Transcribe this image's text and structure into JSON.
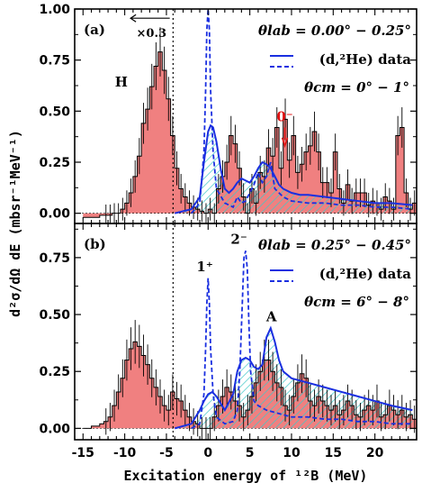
{
  "chart_data": {
    "type": "bar",
    "x_axis_label": "Excitation energy of ¹²B (MeV)",
    "y_axis_label": "d²σ/dΩ dE (mbsr⁻¹MeV⁻¹)",
    "xlim": [
      -16,
      25
    ],
    "xticks": [
      "-15",
      "-10",
      "-5",
      "0",
      "5",
      "10",
      "15",
      "20"
    ],
    "yticks_a": [
      "0.00",
      "0.25",
      "0.50",
      "0.75",
      "1.00"
    ],
    "yticks_b": [
      "0.00",
      "0.25",
      "0.50",
      "0.75"
    ],
    "divider_x": -4.2,
    "panels": [
      {
        "id": "a",
        "panel_label": "(a)",
        "ylim": [
          -0.05,
          1.0
        ],
        "theta_lab_label": "θlab = 0.00° − 0.25°",
        "theta_cm_label": "θcm = 0° − 1°",
        "legend_label": "(d,²He) data",
        "peak_labels": [
          {
            "text": "H",
            "x": -10.4,
            "y": 0.62,
            "color": "#000000"
          },
          {
            "text": "0⁻",
            "x": 9.2,
            "y": 0.45,
            "color": "#e01010"
          }
        ],
        "scale_note": "×0.3",
        "histogram": {
          "x_start": -15.0,
          "bin_width": 0.5,
          "values": [
            -0.02,
            -0.02,
            -0.02,
            -0.02,
            -0.01,
            -0.01,
            -0.01,
            0.0,
            0.0,
            0.02,
            0.05,
            0.1,
            0.18,
            0.28,
            0.44,
            0.51,
            0.62,
            0.72,
            0.79,
            0.7,
            0.56,
            0.38,
            0.22,
            0.12,
            0.08,
            0.05,
            0.03,
            0.02,
            0.01,
            0.0,
            0.02,
            0.0,
            0.12,
            0.18,
            0.25,
            0.38,
            0.34,
            0.22,
            0.08,
            0.0,
            0.12,
            0.05,
            0.2,
            0.18,
            0.32,
            0.28,
            0.42,
            0.22,
            0.46,
            0.26,
            0.38,
            0.2,
            0.24,
            0.3,
            0.33,
            0.4,
            0.3,
            0.15,
            0.15,
            0.1,
            0.3,
            0.12,
            0.05,
            0.14,
            0.06,
            0.1,
            0.1,
            0.1,
            0.04,
            0.06,
            0.05,
            0.02,
            0.08,
            0.06,
            0.02,
            0.38,
            0.42,
            0.1,
            0.02,
            0.05,
            0.04,
            0.02,
            0.03,
            0.08,
            0.07,
            0.05,
            0.05,
            0.04,
            -0.02,
            -0.01,
            0.02,
            0.04,
            0.06,
            0.03,
            0.02,
            0.04,
            0.05,
            0.03,
            0.02,
            0.05,
            0.02,
            0.03,
            0.04,
            0.02,
            0.01,
            0.02,
            0.03,
            0.04,
            0.02,
            0.03,
            0.02,
            0.02,
            0.01,
            0.02,
            0.02,
            0.02,
            0.01,
            0.02,
            0.01,
            0.02,
            0.01
          ]
        },
        "solid_curve": {
          "x": [
            -4,
            -2,
            -1,
            -0.5,
            0,
            0.3,
            0.6,
            1.0,
            1.5,
            2,
            2.5,
            3,
            3.5,
            4,
            4.5,
            5,
            5.5,
            6,
            6.5,
            7,
            7.5,
            8,
            8.5,
            9,
            10,
            11,
            12,
            14,
            16,
            18,
            20,
            22,
            24.5
          ],
          "y": [
            0,
            0.02,
            0.08,
            0.25,
            0.4,
            0.43,
            0.42,
            0.35,
            0.22,
            0.12,
            0.1,
            0.12,
            0.15,
            0.17,
            0.16,
            0.15,
            0.18,
            0.22,
            0.25,
            0.24,
            0.22,
            0.18,
            0.14,
            0.12,
            0.1,
            0.09,
            0.09,
            0.08,
            0.07,
            0.06,
            0.05,
            0.05,
            0.04
          ]
        },
        "dashed_curve": {
          "x": [
            -2,
            -1,
            -0.5,
            -0.3,
            -0.15,
            0,
            0.15,
            0.3,
            0.6,
            1,
            2,
            3,
            3.5,
            4,
            4.5,
            5,
            5.5,
            6,
            6.5,
            7,
            7.5,
            8,
            9,
            10,
            12,
            14,
            16,
            18,
            20,
            22,
            24.5
          ],
          "y": [
            0,
            0.05,
            0.3,
            0.6,
            0.9,
            1.0,
            0.9,
            0.6,
            0.3,
            0.12,
            0.05,
            0.03,
            0.08,
            0.05,
            0.06,
            0.1,
            0.14,
            0.2,
            0.15,
            0.18,
            0.25,
            0.12,
            0.08,
            0.06,
            0.05,
            0.05,
            0.04,
            0.04,
            0.03,
            0.03,
            0.02
          ]
        }
      },
      {
        "id": "b",
        "panel_label": "(b)",
        "ylim": [
          -0.05,
          0.9
        ],
        "theta_lab_label": "θlab = 0.25° − 0.45°",
        "theta_cm_label": "θcm = 6° − 8°",
        "legend_label": "(d,²He) data",
        "peak_labels": [
          {
            "text": "1⁺",
            "x": -0.4,
            "y": 0.69,
            "color": "#000000"
          },
          {
            "text": "2⁻",
            "x": 3.7,
            "y": 0.81,
            "color": "#000000"
          },
          {
            "text": "A",
            "x": 7.6,
            "y": 0.47,
            "color": "#000000"
          }
        ],
        "histogram": {
          "x_start": -15.0,
          "bin_width": 0.5,
          "values": [
            0.0,
            0.0,
            0.01,
            0.01,
            0.02,
            0.03,
            0.05,
            0.1,
            0.16,
            0.22,
            0.3,
            0.35,
            0.38,
            0.36,
            0.32,
            0.28,
            0.22,
            0.18,
            0.14,
            0.1,
            0.08,
            0.16,
            0.13,
            0.12,
            0.08,
            0.05,
            0.03,
            0.02,
            0.0,
            0.0,
            0.0,
            0.05,
            0.1,
            0.14,
            0.18,
            0.16,
            0.12,
            0.1,
            0.05,
            0.08,
            0.14,
            0.2,
            0.25,
            0.3,
            0.3,
            0.25,
            0.2,
            0.18,
            0.1,
            0.08,
            0.14,
            0.2,
            0.24,
            0.22,
            0.12,
            0.1,
            0.14,
            0.12,
            0.1,
            0.08,
            0.1,
            0.06,
            0.08,
            0.12,
            0.1,
            0.06,
            0.05,
            0.08,
            0.1,
            0.08,
            0.12,
            0.05,
            0.06,
            0.1,
            0.08,
            0.06,
            0.08,
            0.05,
            0.06,
            0.04,
            0.08,
            0.06,
            0.05,
            0.04,
            0.06,
            0.05,
            0.04,
            0.1,
            0.05,
            0.06,
            0.05,
            0.04,
            0.03,
            0.05,
            0.04,
            0.03,
            0.02,
            0.03,
            0.02,
            0.02,
            0.02,
            0.01,
            0.02,
            0.01,
            0.02,
            0.01,
            0.02,
            0.01,
            0.02,
            0.01,
            0.02,
            0.01,
            0.02,
            0.01,
            0.02,
            0.01,
            0.01,
            0.01,
            0.01,
            0.01,
            0.01
          ]
        },
        "solid_curve": {
          "x": [
            -4,
            -2,
            -1,
            -0.5,
            0,
            0.5,
            1,
            2,
            3,
            3.5,
            4,
            4.5,
            5,
            5.5,
            6,
            6.5,
            7,
            7.5,
            8,
            8.5,
            9,
            10,
            11,
            12,
            14,
            16,
            18,
            20,
            22,
            24.5
          ],
          "y": [
            0,
            0.02,
            0.08,
            0.12,
            0.15,
            0.16,
            0.14,
            0.08,
            0.15,
            0.25,
            0.3,
            0.31,
            0.3,
            0.27,
            0.26,
            0.28,
            0.4,
            0.44,
            0.38,
            0.3,
            0.25,
            0.22,
            0.21,
            0.2,
            0.18,
            0.16,
            0.14,
            0.12,
            0.1,
            0.08
          ]
        },
        "dashed_curve": {
          "x": [
            -2,
            -1,
            -0.5,
            -0.3,
            -0.15,
            0,
            0.15,
            0.3,
            0.6,
            1,
            2,
            3,
            3.5,
            3.8,
            4.1,
            4.3,
            4.5,
            4.7,
            4.9,
            5.1,
            5.5,
            6,
            7,
            8,
            9,
            10,
            12,
            14,
            16,
            18,
            20,
            22,
            24.5
          ],
          "y": [
            0,
            0.02,
            0.15,
            0.35,
            0.55,
            0.66,
            0.55,
            0.35,
            0.15,
            0.05,
            0.02,
            0.03,
            0.08,
            0.25,
            0.55,
            0.75,
            0.78,
            0.7,
            0.45,
            0.25,
            0.12,
            0.1,
            0.08,
            0.07,
            0.06,
            0.05,
            0.05,
            0.04,
            0.04,
            0.03,
            0.03,
            0.02,
            0.02
          ]
        }
      }
    ]
  },
  "colors": {
    "histogram_fill": "#f08080",
    "histogram_edge": "#000000",
    "curve": "#1a2fe0",
    "hatch": "#40c8c8",
    "zero_label": "#e01010"
  }
}
